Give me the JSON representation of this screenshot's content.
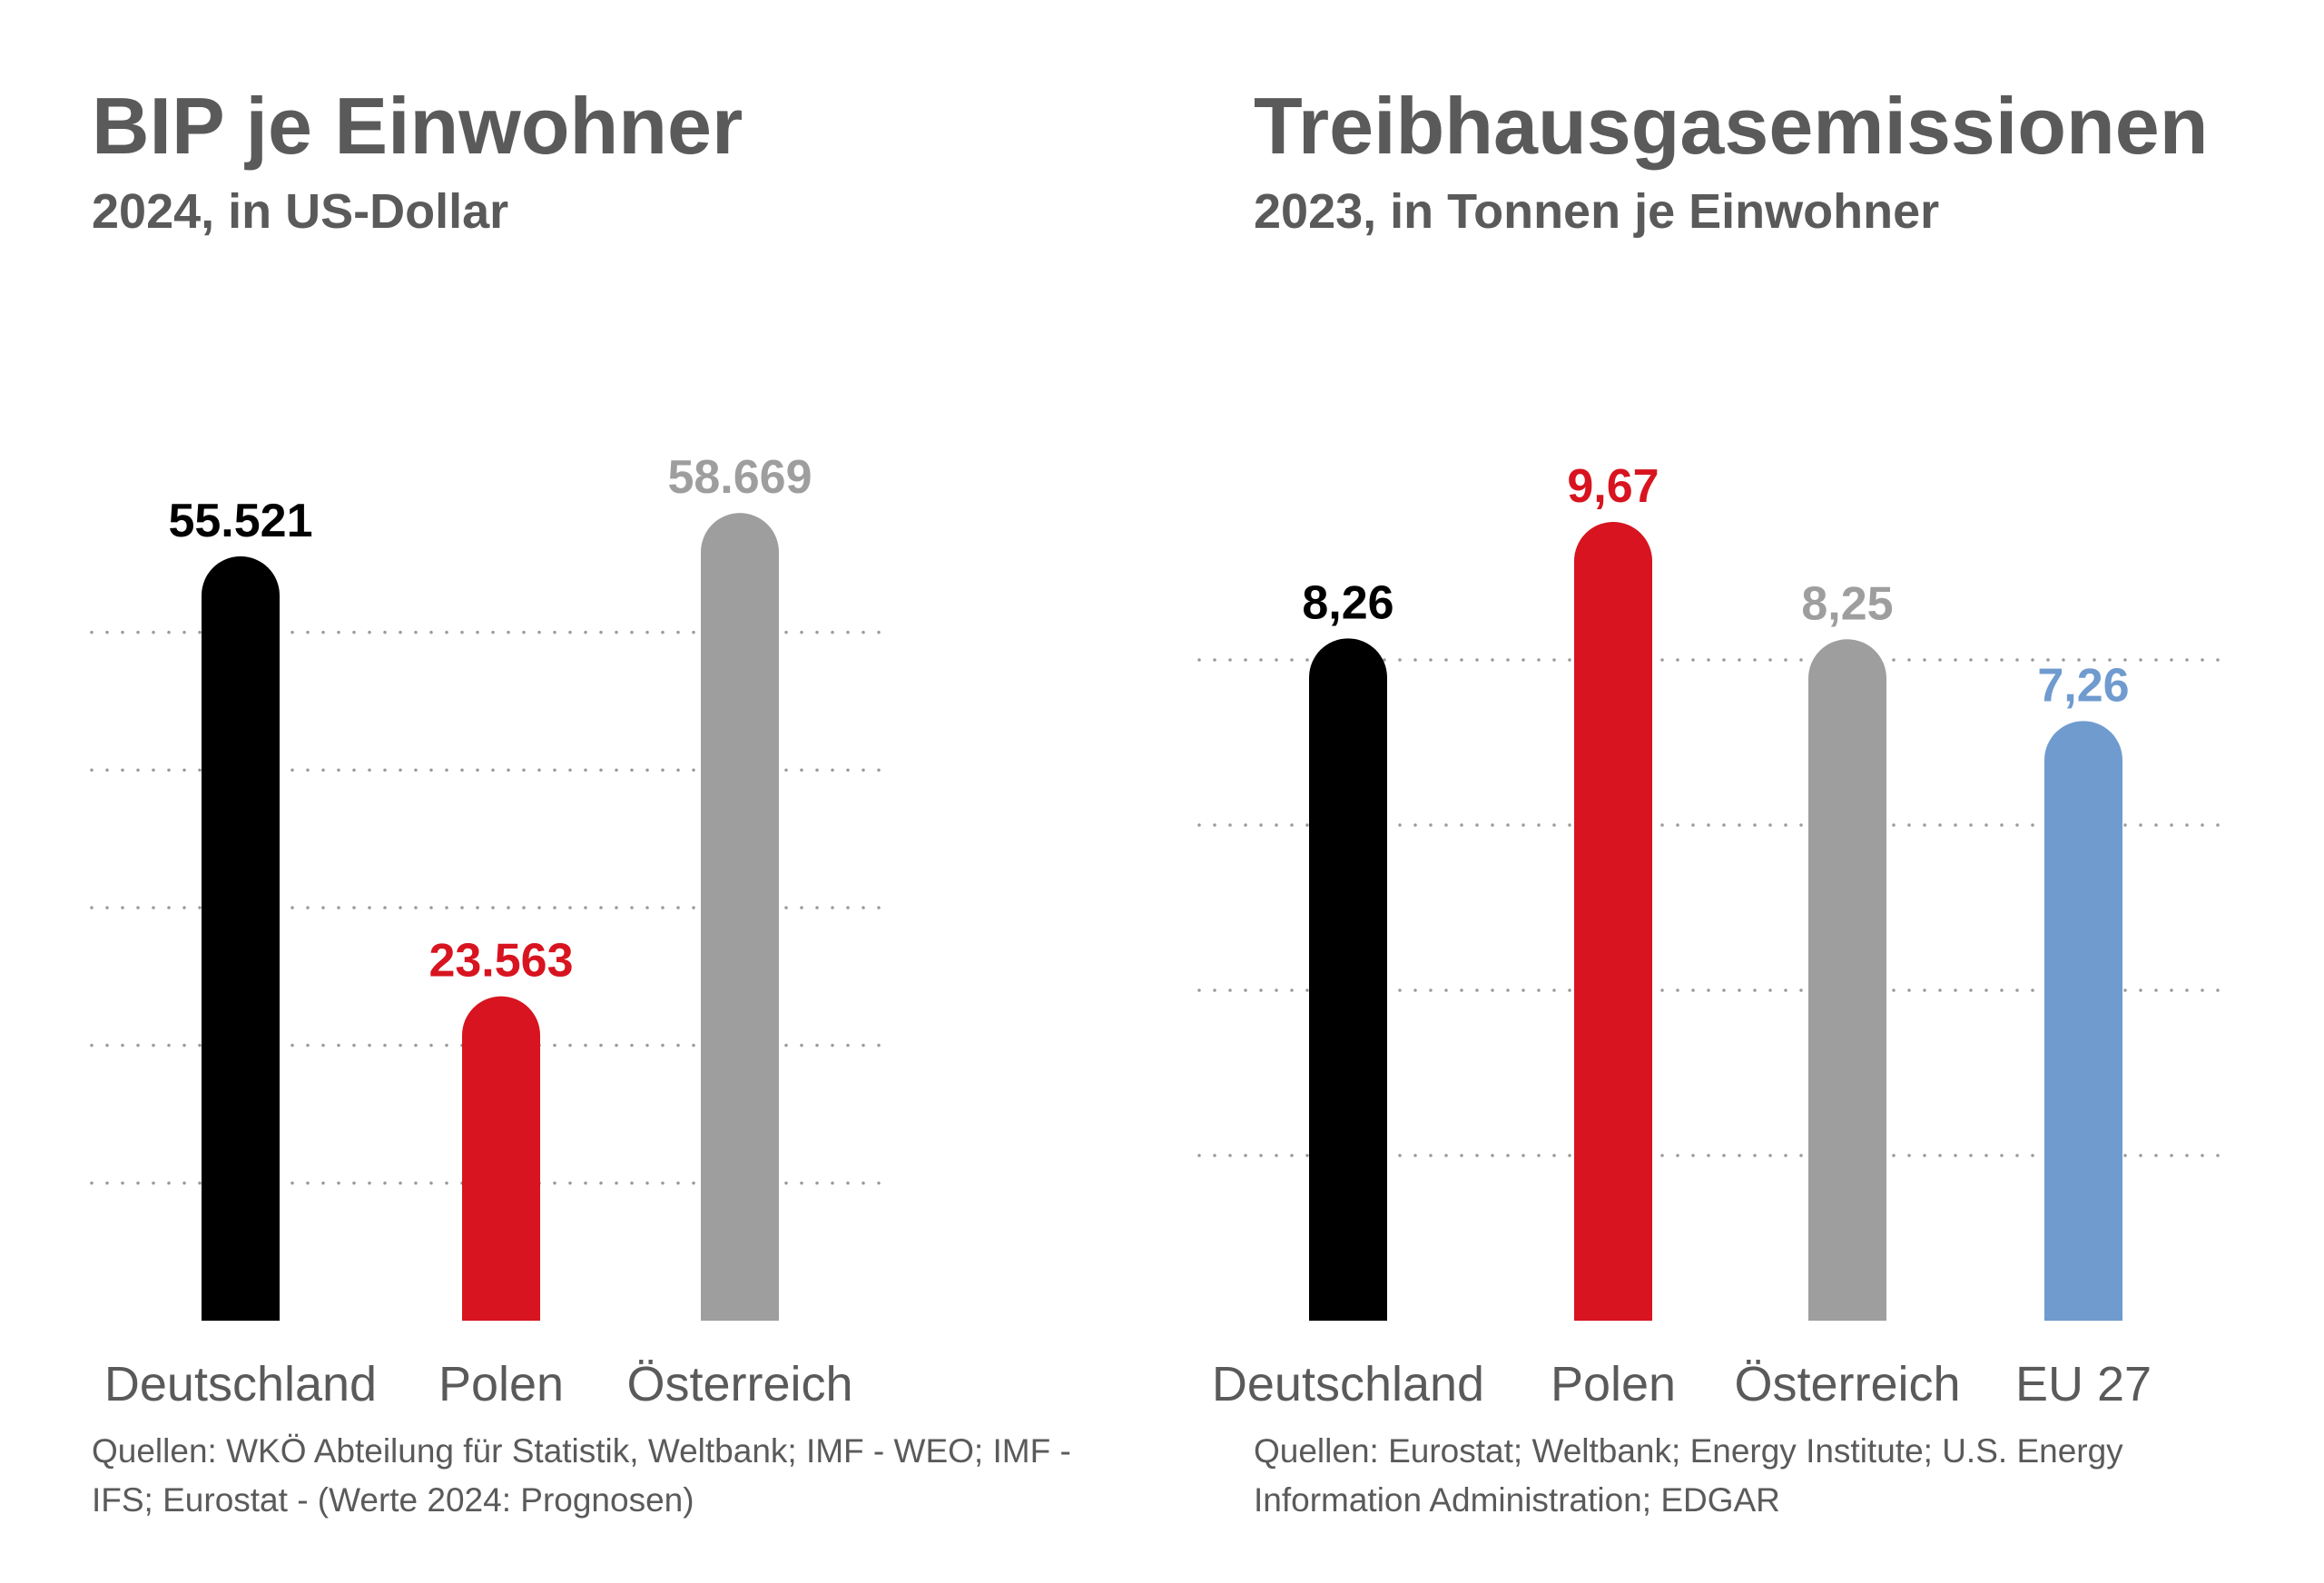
{
  "charts": [
    {
      "id": "gdp",
      "title": "BIP je Einwohner",
      "subtitle": "2024, in US-Dollar",
      "source": "Quellen: WKÖ Abteilung für Statistik, Weltbank; IMF - WEO; IMF - IFS; Eurostat - (Werte 2024: Prognosen)"
    },
    {
      "id": "ghg",
      "title": "Treibhausgasemissionen",
      "subtitle": "2023, in Tonnen je Einwohner",
      "source": "Quellen: Eurostat; Weltbank; Energy Institute; U.S. Energy Information Administration; EDGAR"
    }
  ],
  "chart_data": [
    {
      "type": "bar",
      "title": "BIP je Einwohner",
      "subtitle": "2024, in US-Dollar",
      "categories": [
        "Deutschland",
        "Polen",
        "Österreich"
      ],
      "values": [
        55521,
        23563,
        58669
      ],
      "value_labels": [
        "55.521",
        "23.563",
        "58.669"
      ],
      "colors": [
        "#000000",
        "#d7141f",
        "#9e9e9e"
      ],
      "ylim": [
        0,
        60000
      ],
      "gridlines": [
        10000,
        20000,
        30000,
        40000,
        50000
      ],
      "grid": "dotted",
      "xlabel": "",
      "ylabel": ""
    },
    {
      "type": "bar",
      "title": "Treibhausgasemissionen",
      "subtitle": "2023, in Tonnen je Einwohner",
      "categories": [
        "Deutschland",
        "Polen",
        "Österreich",
        "EU 27"
      ],
      "values": [
        8.26,
        9.67,
        8.25,
        7.26
      ],
      "value_labels": [
        "8,26",
        "9,67",
        "8,25",
        "7,26"
      ],
      "colors": [
        "#000000",
        "#d7141f",
        "#9e9e9e",
        "#6f9bcf"
      ],
      "ylim": [
        0,
        10
      ],
      "gridlines": [
        2,
        4,
        6,
        8
      ],
      "grid": "dotted",
      "xlabel": "",
      "ylabel": ""
    }
  ]
}
